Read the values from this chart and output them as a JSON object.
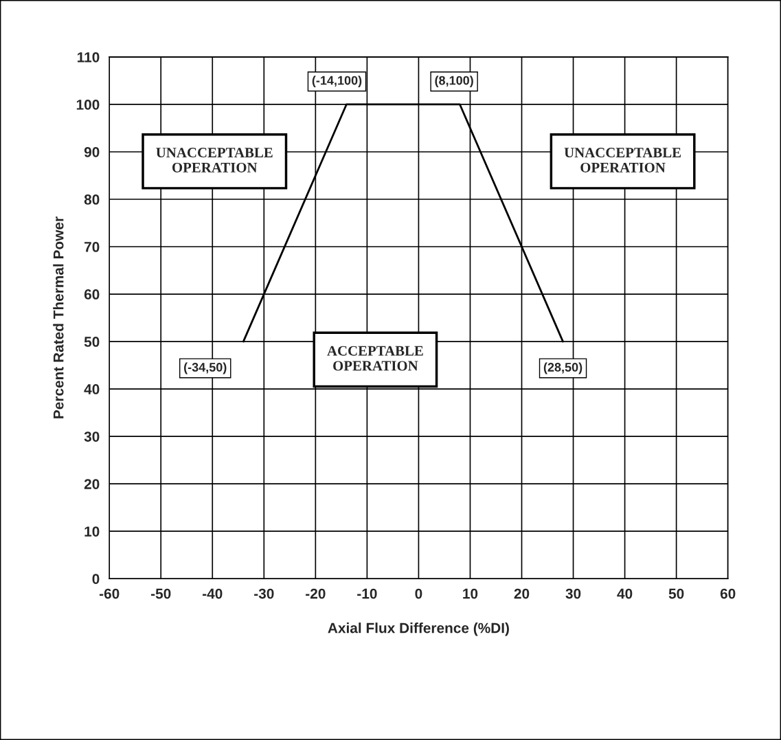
{
  "chart_data": {
    "type": "line",
    "xlabel": "Axial Flux Difference (%DI)",
    "ylabel": "Percent Rated Thermal Power",
    "x": [
      -34,
      -14,
      8,
      28
    ],
    "values": [
      50,
      100,
      100,
      50
    ],
    "color": "#000000",
    "xlim": [
      -60,
      60
    ],
    "xticks": [
      -60,
      -50,
      -40,
      -30,
      -20,
      -10,
      0,
      10,
      20,
      30,
      40,
      50,
      60
    ],
    "ylim": [
      0,
      110
    ],
    "yticks": [
      0,
      10,
      20,
      30,
      40,
      50,
      60,
      70,
      80,
      90,
      100,
      110
    ],
    "grid": true,
    "marker": "none",
    "line_style": "solid",
    "annotations": [
      {
        "text": "(-14,100)",
        "x": -14,
        "y": 100
      },
      {
        "text": "(8,100)",
        "x": 8,
        "y": 100
      },
      {
        "text": "(-34,50)",
        "x": -34,
        "y": 50
      },
      {
        "text": "(28,50)",
        "x": 28,
        "y": 50
      },
      "UNACCEPTABLE\nOPERATION",
      "UNACCEPTABLE\nOPERATION",
      "ACCEPTABLE\nOPERATION"
    ]
  }
}
